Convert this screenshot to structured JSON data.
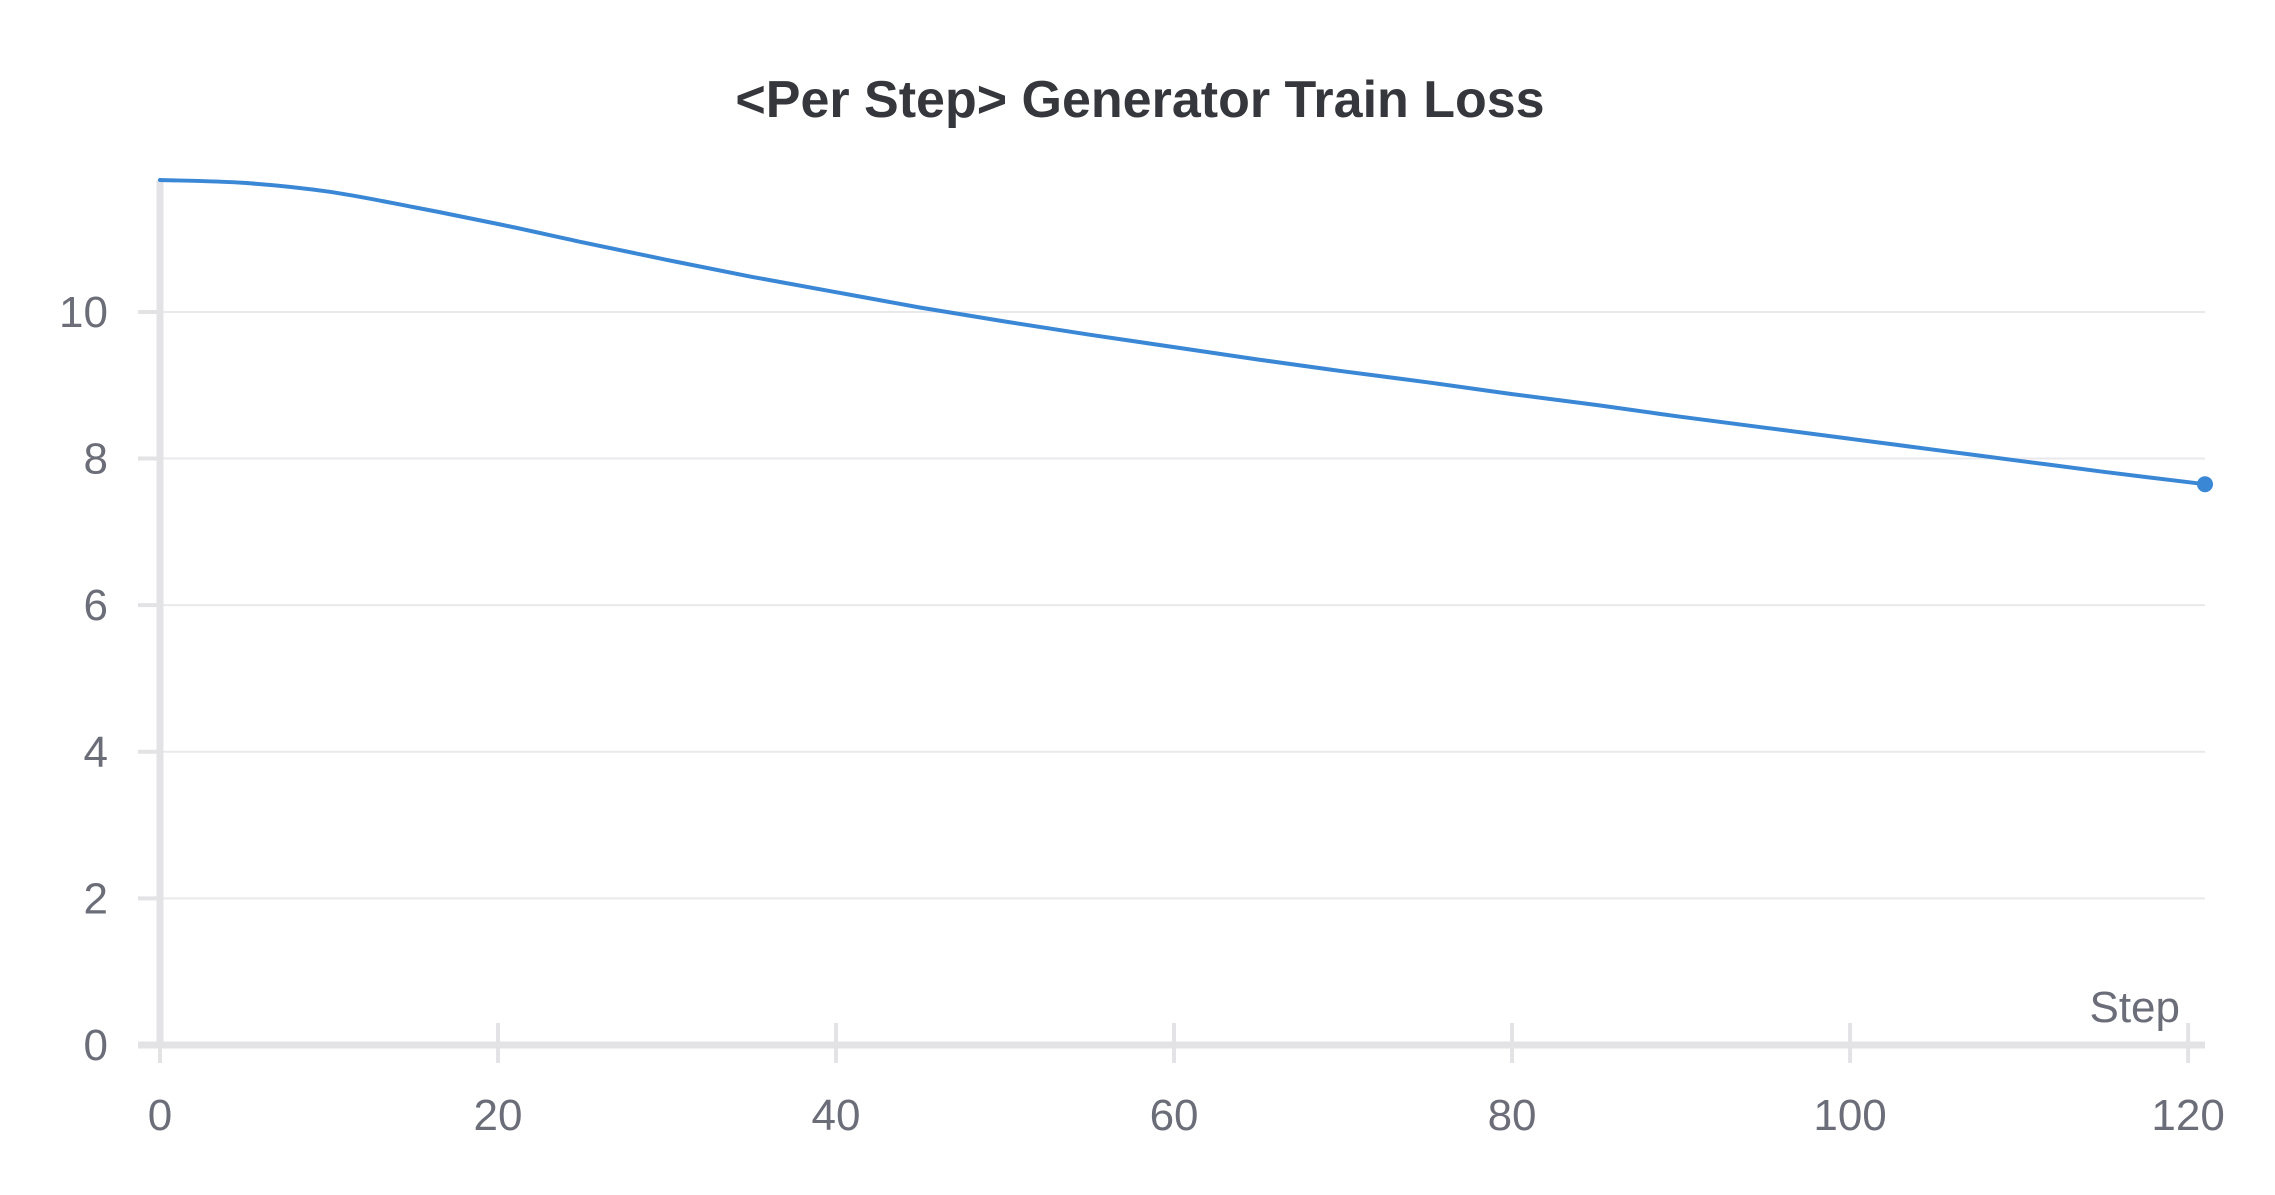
{
  "chart_data": {
    "type": "line",
    "title": "<Per Step> Generator Train Loss",
    "xlabel": "Step",
    "ylabel": "",
    "xlim": [
      0,
      121
    ],
    "ylim": [
      0,
      11.8
    ],
    "x_ticks": [
      0,
      20,
      40,
      60,
      80,
      100,
      120
    ],
    "y_ticks": [
      0,
      2,
      4,
      6,
      8,
      10
    ],
    "grid": true,
    "colors": {
      "line": "#3a87d6",
      "axis": "#e3e3e6",
      "grid": "#e9e9ec"
    },
    "series": [
      {
        "x": [
          0,
          5,
          10,
          15,
          20,
          25,
          30,
          35,
          40,
          45,
          50,
          55,
          60,
          65,
          70,
          75,
          80,
          85,
          90,
          95,
          100,
          105,
          110,
          115,
          121
        ],
        "y": [
          11.8,
          11.76,
          11.64,
          11.43,
          11.2,
          10.95,
          10.71,
          10.48,
          10.27,
          10.06,
          9.87,
          9.69,
          9.52,
          9.35,
          9.19,
          9.04,
          8.88,
          8.73,
          8.57,
          8.42,
          8.27,
          8.12,
          7.97,
          7.82,
          7.65
        ]
      }
    ]
  }
}
